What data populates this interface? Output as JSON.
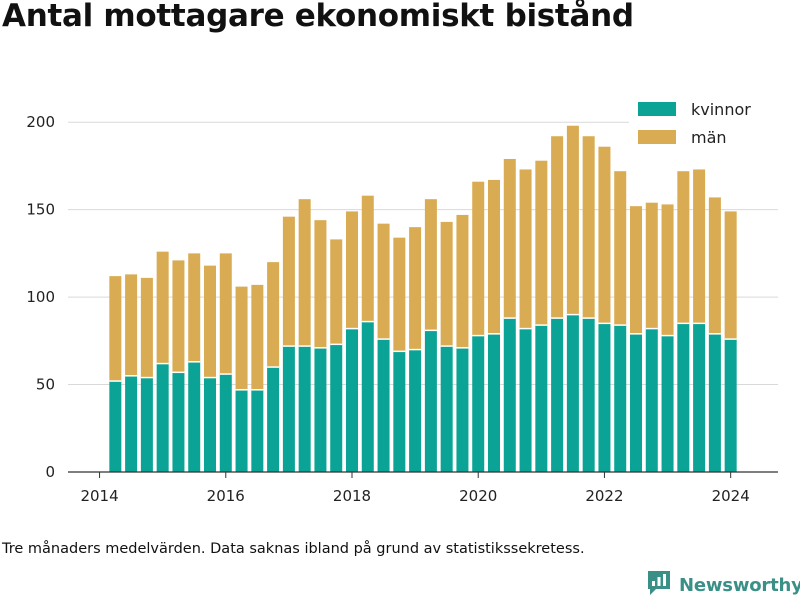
{
  "title": "Antal mottagare ekonomiskt bistånd",
  "note": "Tre månaders medelvärden. Data saknas ibland på grund av statistikssekretess.",
  "brand": {
    "name": "Newsworthy",
    "logo_icon": "newsworthy-logo-icon"
  },
  "colors": {
    "kvinnor": "#0aa395",
    "man": "#d9ab52",
    "grid": "#d9d9d9",
    "axis": "#333333"
  },
  "chart_data": {
    "type": "bar",
    "stacked": true,
    "title": "Antal mottagare ekonomiskt bistånd",
    "xlabel": "",
    "ylabel": "",
    "xlim": [
      2013.5,
      2024.75
    ],
    "ylim": [
      0,
      215
    ],
    "xticks": [
      2014,
      2016,
      2018,
      2020,
      2022,
      2024
    ],
    "yticks": [
      0,
      50,
      100,
      150,
      200
    ],
    "grid": true,
    "legend_position": "top-right",
    "x": [
      2014.25,
      2014.5,
      2014.75,
      2015.0,
      2015.25,
      2015.5,
      2015.75,
      2016.0,
      2016.25,
      2016.5,
      2016.75,
      2017.0,
      2017.25,
      2017.5,
      2017.75,
      2018.0,
      2018.25,
      2018.5,
      2018.75,
      2019.0,
      2019.25,
      2019.5,
      2019.75,
      2020.0,
      2020.25,
      2020.5,
      2020.75,
      2021.0,
      2021.25,
      2021.5,
      2021.75,
      2022.0,
      2022.25,
      2022.5,
      2022.75,
      2023.0,
      2023.25,
      2023.5,
      2023.75,
      2024.0
    ],
    "series": [
      {
        "name": "kvinnor",
        "values": [
          52,
          55,
          54,
          62,
          57,
          63,
          54,
          56,
          47,
          47,
          60,
          72,
          72,
          71,
          73,
          82,
          86,
          76,
          69,
          70,
          81,
          72,
          71,
          78,
          79,
          88,
          82,
          84,
          88,
          90,
          88,
          85,
          84,
          79,
          82,
          78,
          85,
          85,
          79,
          76
        ]
      },
      {
        "name": "män",
        "values": [
          60,
          58,
          57,
          64,
          64,
          62,
          64,
          69,
          59,
          60,
          60,
          74,
          84,
          73,
          60,
          67,
          72,
          66,
          65,
          70,
          75,
          71,
          76,
          88,
          88,
          91,
          91,
          94,
          104,
          108,
          104,
          101,
          88,
          73,
          72,
          75,
          87,
          88,
          78,
          73
        ]
      }
    ]
  }
}
